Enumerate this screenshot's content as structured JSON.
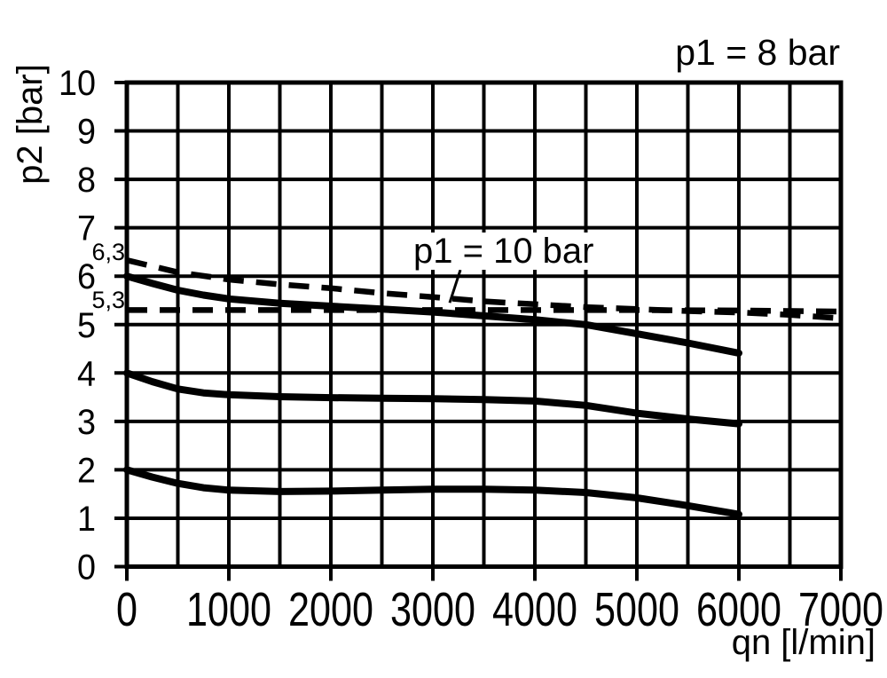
{
  "page": {
    "background": "#ffffff",
    "line_color": "#000000"
  },
  "chart_data": {
    "type": "line",
    "title": "p1 = 8 bar",
    "xlabel": "qn [l/min]",
    "ylabel": "p2 [bar]",
    "xlim": [
      0,
      7000
    ],
    "ylim": [
      0,
      10
    ],
    "x_ticks": [
      0,
      1000,
      2000,
      3000,
      4000,
      5000,
      6000,
      7000
    ],
    "y_ticks": [
      0,
      1,
      2,
      3,
      4,
      5,
      6,
      7,
      8,
      9,
      10
    ],
    "x_grid_step": 500,
    "y_grid_step": 1,
    "grid": true,
    "legend_position": "none",
    "annotations": [
      {
        "id": "condition-main",
        "text": "p1 = 8 bar",
        "position": "top-right"
      },
      {
        "id": "condition-secondary",
        "text": "p1 = 10 bar",
        "position": "above-dashed-curves",
        "leader": {
          "from": [
            3270,
            6.13
          ],
          "to": [
            3165,
            5.45
          ]
        }
      },
      {
        "id": "setpoint-63",
        "text": "6,3",
        "x": 0,
        "y": 6.5,
        "position": "left-of-axis"
      },
      {
        "id": "setpoint-53",
        "text": "5,3",
        "x": 0,
        "y": 5.5,
        "position": "left-of-axis"
      }
    ],
    "series": [
      {
        "id": "solid-set-6-bar",
        "name": "p1 = 8 bar, set pressure 6 bar",
        "style": "solid",
        "points": [
          [
            0,
            6.0
          ],
          [
            250,
            5.85
          ],
          [
            500,
            5.71
          ],
          [
            750,
            5.61
          ],
          [
            1000,
            5.53
          ],
          [
            1500,
            5.44
          ],
          [
            2000,
            5.38
          ],
          [
            2500,
            5.32
          ],
          [
            3000,
            5.26
          ],
          [
            3500,
            5.18
          ],
          [
            4000,
            5.1
          ],
          [
            4500,
            5.0
          ],
          [
            5000,
            4.81
          ],
          [
            5500,
            4.62
          ],
          [
            6000,
            4.41
          ]
        ]
      },
      {
        "id": "solid-set-4-bar",
        "name": "p1 = 8 bar, set pressure 4 bar",
        "style": "solid",
        "points": [
          [
            0,
            4.0
          ],
          [
            250,
            3.82
          ],
          [
            500,
            3.67
          ],
          [
            750,
            3.59
          ],
          [
            1000,
            3.55
          ],
          [
            1500,
            3.51
          ],
          [
            2000,
            3.49
          ],
          [
            2500,
            3.48
          ],
          [
            3000,
            3.47
          ],
          [
            3500,
            3.45
          ],
          [
            4000,
            3.42
          ],
          [
            4500,
            3.33
          ],
          [
            5000,
            3.17
          ],
          [
            5500,
            3.05
          ],
          [
            6000,
            2.95
          ]
        ]
      },
      {
        "id": "solid-set-2-bar",
        "name": "p1 = 8 bar, set pressure 2 bar",
        "style": "solid",
        "points": [
          [
            0,
            2.0
          ],
          [
            250,
            1.85
          ],
          [
            500,
            1.72
          ],
          [
            750,
            1.63
          ],
          [
            1000,
            1.58
          ],
          [
            1500,
            1.55
          ],
          [
            2000,
            1.56
          ],
          [
            2500,
            1.58
          ],
          [
            3000,
            1.6
          ],
          [
            3500,
            1.6
          ],
          [
            4000,
            1.58
          ],
          [
            4500,
            1.53
          ],
          [
            5000,
            1.42
          ],
          [
            5500,
            1.26
          ],
          [
            6000,
            1.08
          ]
        ]
      },
      {
        "id": "dashed-set-6-3-bar",
        "name": "p1 = 10 bar, set pressure 6,3 bar",
        "style": "dashed",
        "points": [
          [
            0,
            6.33
          ],
          [
            500,
            6.08
          ],
          [
            1000,
            5.93
          ],
          [
            1500,
            5.83
          ],
          [
            2000,
            5.75
          ],
          [
            2500,
            5.65
          ],
          [
            3000,
            5.57
          ],
          [
            3500,
            5.48
          ],
          [
            4000,
            5.42
          ],
          [
            4500,
            5.36
          ],
          [
            5000,
            5.32
          ],
          [
            5500,
            5.28
          ],
          [
            6000,
            5.25
          ],
          [
            6500,
            5.2
          ],
          [
            7000,
            5.13
          ]
        ]
      },
      {
        "id": "dashed-set-5-3-bar",
        "name": "p1 = 10 bar, set pressure 5,3 bar",
        "style": "dashed",
        "points": [
          [
            0,
            5.3
          ],
          [
            1000,
            5.3
          ],
          [
            2000,
            5.3
          ],
          [
            3000,
            5.3
          ],
          [
            4000,
            5.3
          ],
          [
            5000,
            5.3
          ],
          [
            6000,
            5.29
          ],
          [
            7000,
            5.27
          ]
        ]
      }
    ]
  }
}
